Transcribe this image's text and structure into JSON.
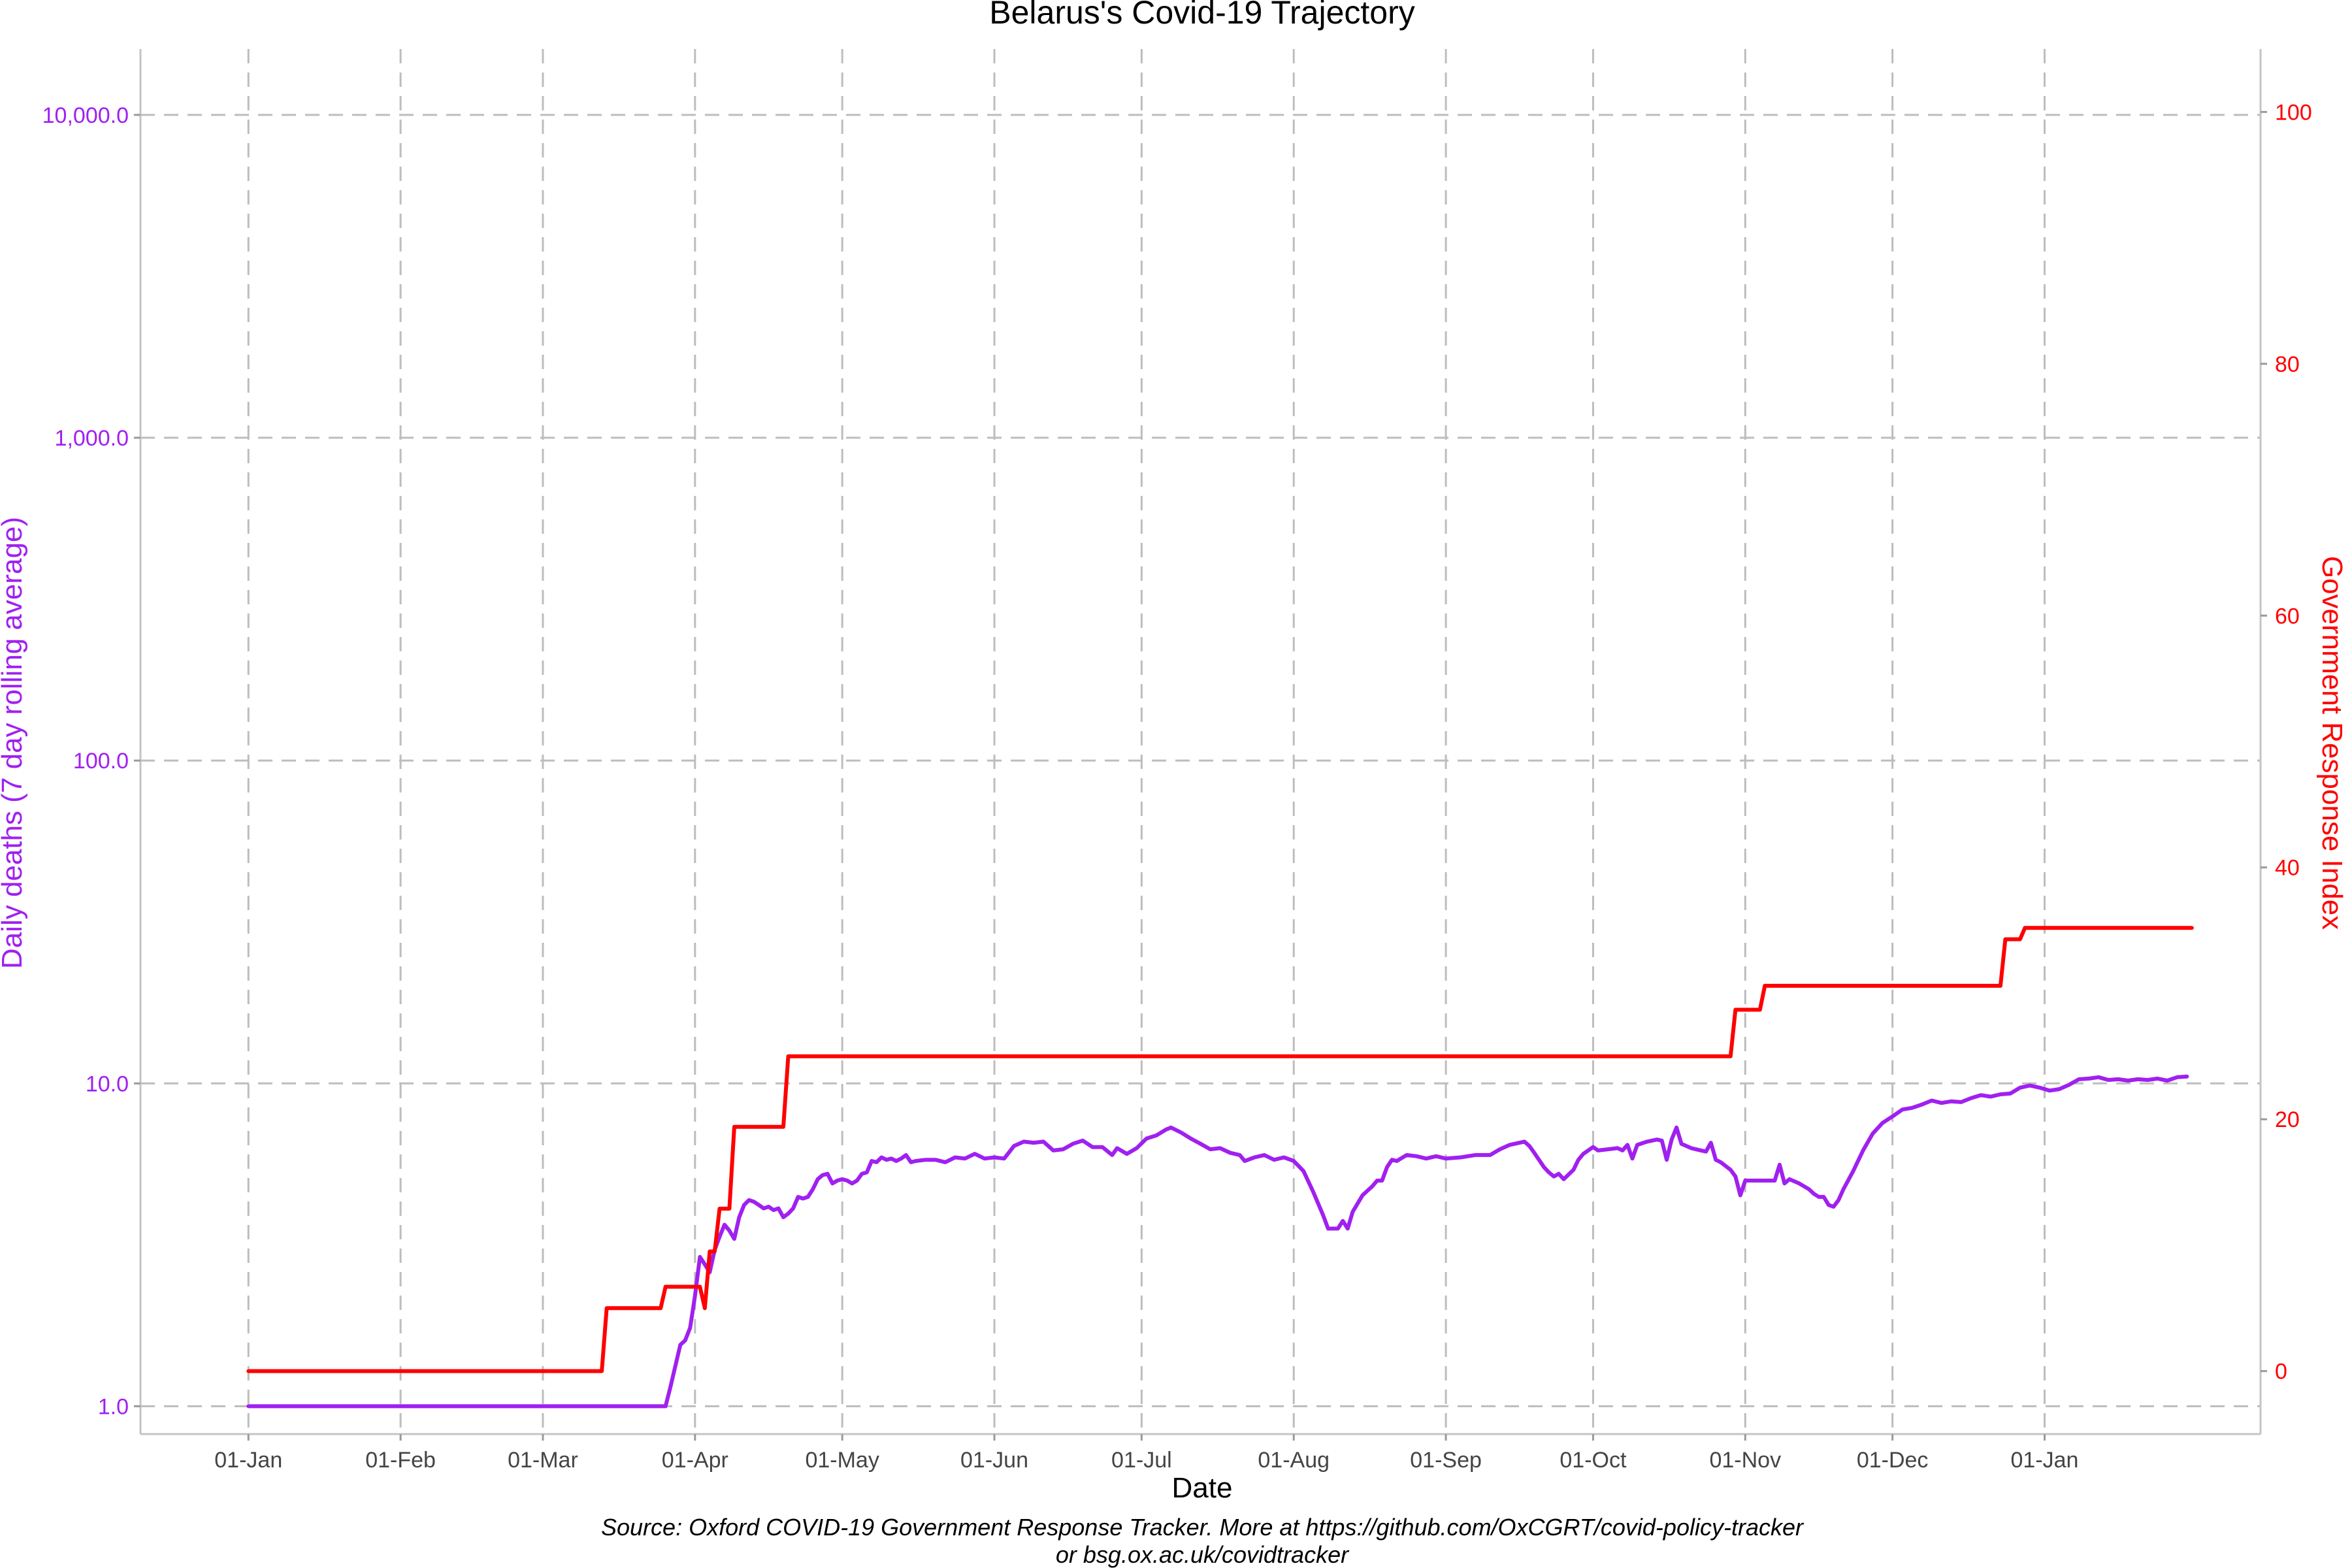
{
  "chart_data": {
    "type": "line",
    "title": "Belarus's Covid-19 Trajectory",
    "xlabel": "Date",
    "ylabel_left": "Daily deaths (7 day rolling average)",
    "ylabel_right": "Government Response Index",
    "caption_line1": "Source: Oxford COVID-19 Government Response Tracker. More at https://github.com/OxCGRT/covid-policy-tracker",
    "caption_line2": "or bsg.ox.ac.uk/covidtracker",
    "grid": true,
    "x_range": [
      "2019-12-10",
      "2021-02-14"
    ],
    "x_ticks": [
      {
        "date": "2020-01-01",
        "label": "01-Jan"
      },
      {
        "date": "2020-02-01",
        "label": "01-Feb"
      },
      {
        "date": "2020-03-01",
        "label": "01-Mar"
      },
      {
        "date": "2020-04-01",
        "label": "01-Apr"
      },
      {
        "date": "2020-05-01",
        "label": "01-May"
      },
      {
        "date": "2020-06-01",
        "label": "01-Jun"
      },
      {
        "date": "2020-07-01",
        "label": "01-Jul"
      },
      {
        "date": "2020-08-01",
        "label": "01-Aug"
      },
      {
        "date": "2020-09-01",
        "label": "01-Sep"
      },
      {
        "date": "2020-10-01",
        "label": "01-Oct"
      },
      {
        "date": "2020-11-01",
        "label": "01-Nov"
      },
      {
        "date": "2020-12-01",
        "label": "01-Dec"
      },
      {
        "date": "2021-01-01",
        "label": "01-Jan"
      }
    ],
    "y_left": {
      "scale": "log10",
      "range": [
        0.82,
        16000
      ],
      "ticks": [
        {
          "value": 1,
          "label": "1.0"
        },
        {
          "value": 10,
          "label": "10.0"
        },
        {
          "value": 100,
          "label": "100.0"
        },
        {
          "value": 1000,
          "label": "1,000.0"
        },
        {
          "value": 10000,
          "label": "10,000.0"
        }
      ],
      "color": "#a020f0"
    },
    "y_right": {
      "scale": "linear",
      "range": [
        -5,
        105
      ],
      "ticks": [
        {
          "value": 0,
          "label": "0"
        },
        {
          "value": 20,
          "label": "20"
        },
        {
          "value": 40,
          "label": "40"
        },
        {
          "value": 60,
          "label": "60"
        },
        {
          "value": 80,
          "label": "80"
        },
        {
          "value": 100,
          "label": "100"
        }
      ],
      "color": "#ff0000"
    },
    "series": [
      {
        "key": "deaths",
        "axis": "left",
        "color": "#a020f0",
        "points": [
          [
            "2020-01-01",
            1.0
          ],
          [
            "2020-03-13",
            1.0
          ],
          [
            "2020-03-26",
            1.0
          ],
          [
            "2020-03-27",
            1.15
          ],
          [
            "2020-03-29",
            1.55
          ],
          [
            "2020-03-30",
            1.6
          ],
          [
            "2020-03-31",
            1.75
          ],
          [
            "2020-04-01",
            2.2
          ],
          [
            "2020-04-02",
            2.9
          ],
          [
            "2020-04-03",
            2.75
          ],
          [
            "2020-04-04",
            2.6
          ],
          [
            "2020-04-05",
            3.05
          ],
          [
            "2020-04-06",
            3.35
          ],
          [
            "2020-04-07",
            3.65
          ],
          [
            "2020-04-08",
            3.5
          ],
          [
            "2020-04-09",
            3.3
          ],
          [
            "2020-04-10",
            3.85
          ],
          [
            "2020-04-11",
            4.2
          ],
          [
            "2020-04-12",
            4.35
          ],
          [
            "2020-04-13",
            4.3
          ],
          [
            "2020-04-14",
            4.2
          ],
          [
            "2020-04-15",
            4.1
          ],
          [
            "2020-04-16",
            4.15
          ],
          [
            "2020-04-17",
            4.05
          ],
          [
            "2020-04-18",
            4.1
          ],
          [
            "2020-04-19",
            3.85
          ],
          [
            "2020-04-20",
            3.95
          ],
          [
            "2020-04-21",
            4.1
          ],
          [
            "2020-04-22",
            4.45
          ],
          [
            "2020-04-23",
            4.4
          ],
          [
            "2020-04-24",
            4.45
          ],
          [
            "2020-04-25",
            4.7
          ],
          [
            "2020-04-26",
            5.05
          ],
          [
            "2020-04-27",
            5.2
          ],
          [
            "2020-04-28",
            5.25
          ],
          [
            "2020-04-29",
            4.9
          ],
          [
            "2020-04-30",
            5.0
          ],
          [
            "2020-05-01",
            5.05
          ],
          [
            "2020-05-02",
            5.0
          ],
          [
            "2020-05-03",
            4.9
          ],
          [
            "2020-05-04",
            5.0
          ],
          [
            "2020-05-05",
            5.25
          ],
          [
            "2020-05-06",
            5.3
          ],
          [
            "2020-05-07",
            5.75
          ],
          [
            "2020-05-08",
            5.7
          ],
          [
            "2020-05-09",
            5.9
          ],
          [
            "2020-05-10",
            5.8
          ],
          [
            "2020-05-11",
            5.85
          ],
          [
            "2020-05-12",
            5.75
          ],
          [
            "2020-05-13",
            5.85
          ],
          [
            "2020-05-14",
            6.0
          ],
          [
            "2020-05-15",
            5.7
          ],
          [
            "2020-05-16",
            5.75
          ],
          [
            "2020-05-18",
            5.8
          ],
          [
            "2020-05-20",
            5.8
          ],
          [
            "2020-05-22",
            5.7
          ],
          [
            "2020-05-24",
            5.9
          ],
          [
            "2020-05-26",
            5.85
          ],
          [
            "2020-05-28",
            6.05
          ],
          [
            "2020-05-30",
            5.85
          ],
          [
            "2020-06-01",
            5.9
          ],
          [
            "2020-06-03",
            5.85
          ],
          [
            "2020-06-05",
            6.4
          ],
          [
            "2020-06-07",
            6.6
          ],
          [
            "2020-06-09",
            6.55
          ],
          [
            "2020-06-11",
            6.6
          ],
          [
            "2020-06-13",
            6.2
          ],
          [
            "2020-06-15",
            6.25
          ],
          [
            "2020-06-17",
            6.5
          ],
          [
            "2020-06-19",
            6.65
          ],
          [
            "2020-06-21",
            6.35
          ],
          [
            "2020-06-23",
            6.35
          ],
          [
            "2020-06-25",
            6.0
          ],
          [
            "2020-06-26",
            6.3
          ],
          [
            "2020-06-28",
            6.05
          ],
          [
            "2020-06-30",
            6.3
          ],
          [
            "2020-07-02",
            6.75
          ],
          [
            "2020-07-04",
            6.9
          ],
          [
            "2020-07-06",
            7.2
          ],
          [
            "2020-07-07",
            7.3
          ],
          [
            "2020-07-09",
            7.05
          ],
          [
            "2020-07-11",
            6.75
          ],
          [
            "2020-07-13",
            6.5
          ],
          [
            "2020-07-15",
            6.25
          ],
          [
            "2020-07-17",
            6.3
          ],
          [
            "2020-07-19",
            6.1
          ],
          [
            "2020-07-21",
            6.0
          ],
          [
            "2020-07-22",
            5.75
          ],
          [
            "2020-07-24",
            5.9
          ],
          [
            "2020-07-26",
            6.0
          ],
          [
            "2020-07-28",
            5.8
          ],
          [
            "2020-07-30",
            5.9
          ],
          [
            "2020-08-01",
            5.75
          ],
          [
            "2020-08-03",
            5.35
          ],
          [
            "2020-08-05",
            4.6
          ],
          [
            "2020-08-07",
            3.9
          ],
          [
            "2020-08-08",
            3.55
          ],
          [
            "2020-08-10",
            3.55
          ],
          [
            "2020-08-11",
            3.75
          ],
          [
            "2020-08-12",
            3.55
          ],
          [
            "2020-08-13",
            4.0
          ],
          [
            "2020-08-15",
            4.5
          ],
          [
            "2020-08-17",
            4.8
          ],
          [
            "2020-08-18",
            5.0
          ],
          [
            "2020-08-19",
            5.0
          ],
          [
            "2020-08-20",
            5.5
          ],
          [
            "2020-08-21",
            5.8
          ],
          [
            "2020-08-22",
            5.75
          ],
          [
            "2020-08-24",
            6.0
          ],
          [
            "2020-08-26",
            5.95
          ],
          [
            "2020-08-28",
            5.85
          ],
          [
            "2020-08-30",
            5.95
          ],
          [
            "2020-09-01",
            5.85
          ],
          [
            "2020-09-04",
            5.9
          ],
          [
            "2020-09-07",
            6.0
          ],
          [
            "2020-09-10",
            6.0
          ],
          [
            "2020-09-12",
            6.25
          ],
          [
            "2020-09-14",
            6.45
          ],
          [
            "2020-09-16",
            6.55
          ],
          [
            "2020-09-17",
            6.6
          ],
          [
            "2020-09-18",
            6.4
          ],
          [
            "2020-09-19",
            6.1
          ],
          [
            "2020-09-21",
            5.5
          ],
          [
            "2020-09-22",
            5.3
          ],
          [
            "2020-09-23",
            5.15
          ],
          [
            "2020-09-24",
            5.25
          ],
          [
            "2020-09-25",
            5.05
          ],
          [
            "2020-09-27",
            5.4
          ],
          [
            "2020-09-28",
            5.8
          ],
          [
            "2020-09-29",
            6.05
          ],
          [
            "2020-10-01",
            6.35
          ],
          [
            "2020-10-02",
            6.2
          ],
          [
            "2020-10-04",
            6.25
          ],
          [
            "2020-10-06",
            6.3
          ],
          [
            "2020-10-07",
            6.2
          ],
          [
            "2020-10-08",
            6.45
          ],
          [
            "2020-10-09",
            5.85
          ],
          [
            "2020-10-10",
            6.45
          ],
          [
            "2020-10-12",
            6.6
          ],
          [
            "2020-10-14",
            6.7
          ],
          [
            "2020-10-15",
            6.65
          ],
          [
            "2020-10-16",
            5.8
          ],
          [
            "2020-10-17",
            6.7
          ],
          [
            "2020-10-18",
            7.3
          ],
          [
            "2020-10-19",
            6.5
          ],
          [
            "2020-10-21",
            6.3
          ],
          [
            "2020-10-23",
            6.2
          ],
          [
            "2020-10-24",
            6.15
          ],
          [
            "2020-10-25",
            6.55
          ],
          [
            "2020-10-26",
            5.8
          ],
          [
            "2020-10-27",
            5.7
          ],
          [
            "2020-10-29",
            5.4
          ],
          [
            "2020-10-30",
            5.15
          ],
          [
            "2020-10-31",
            4.5
          ],
          [
            "2020-11-01",
            5.0
          ],
          [
            "2020-11-03",
            5.0
          ],
          [
            "2020-11-05",
            5.0
          ],
          [
            "2020-11-07",
            5.0
          ],
          [
            "2020-11-08",
            5.6
          ],
          [
            "2020-11-09",
            4.9
          ],
          [
            "2020-11-10",
            5.05
          ],
          [
            "2020-11-12",
            4.9
          ],
          [
            "2020-11-14",
            4.7
          ],
          [
            "2020-11-15",
            4.55
          ],
          [
            "2020-11-16",
            4.45
          ],
          [
            "2020-11-17",
            4.45
          ],
          [
            "2020-11-18",
            4.2
          ],
          [
            "2020-11-19",
            4.15
          ],
          [
            "2020-11-20",
            4.35
          ],
          [
            "2020-11-21",
            4.7
          ],
          [
            "2020-11-23",
            5.35
          ],
          [
            "2020-11-25",
            6.2
          ],
          [
            "2020-11-27",
            7.0
          ],
          [
            "2020-11-29",
            7.55
          ],
          [
            "2020-12-01",
            7.9
          ],
          [
            "2020-12-03",
            8.3
          ],
          [
            "2020-12-05",
            8.4
          ],
          [
            "2020-12-07",
            8.6
          ],
          [
            "2020-12-09",
            8.85
          ],
          [
            "2020-12-11",
            8.7
          ],
          [
            "2020-12-13",
            8.8
          ],
          [
            "2020-12-15",
            8.75
          ],
          [
            "2020-12-17",
            9.0
          ],
          [
            "2020-12-19",
            9.2
          ],
          [
            "2020-12-21",
            9.1
          ],
          [
            "2020-12-23",
            9.25
          ],
          [
            "2020-12-25",
            9.3
          ],
          [
            "2020-12-27",
            9.7
          ],
          [
            "2020-12-29",
            9.85
          ],
          [
            "2020-12-31",
            9.7
          ],
          [
            "2021-01-02",
            9.5
          ],
          [
            "2021-01-04",
            9.6
          ],
          [
            "2021-01-06",
            9.9
          ],
          [
            "2021-01-08",
            10.3
          ],
          [
            "2021-01-10",
            10.35
          ],
          [
            "2021-01-12",
            10.45
          ],
          [
            "2021-01-14",
            10.25
          ],
          [
            "2021-01-16",
            10.3
          ],
          [
            "2021-01-18",
            10.2
          ],
          [
            "2021-01-20",
            10.3
          ],
          [
            "2021-01-22",
            10.25
          ],
          [
            "2021-01-24",
            10.35
          ],
          [
            "2021-01-26",
            10.2
          ],
          [
            "2021-01-28",
            10.45
          ],
          [
            "2021-01-30",
            10.5
          ]
        ]
      },
      {
        "key": "stringency",
        "axis": "right",
        "color": "#ff0000",
        "step": true,
        "points": [
          [
            "2020-01-01",
            0
          ],
          [
            "2020-03-13",
            0
          ],
          [
            "2020-03-14",
            5
          ],
          [
            "2020-03-25",
            5
          ],
          [
            "2020-03-26",
            6.7
          ],
          [
            "2020-04-02",
            6.7
          ],
          [
            "2020-04-03",
            5.0
          ],
          [
            "2020-04-04",
            9.5
          ],
          [
            "2020-04-05",
            9.5
          ],
          [
            "2020-04-06",
            12.9
          ],
          [
            "2020-04-08",
            12.9
          ],
          [
            "2020-04-09",
            19.4
          ],
          [
            "2020-04-19",
            19.4
          ],
          [
            "2020-04-20",
            25.0
          ],
          [
            "2020-10-29",
            25.0
          ],
          [
            "2020-10-30",
            28.7
          ],
          [
            "2020-11-04",
            28.7
          ],
          [
            "2020-11-05",
            30.6
          ],
          [
            "2020-12-23",
            30.6
          ],
          [
            "2020-12-24",
            34.3
          ],
          [
            "2020-12-27",
            34.3
          ],
          [
            "2020-12-28",
            35.2
          ],
          [
            "2021-01-31",
            35.2
          ]
        ]
      }
    ]
  }
}
